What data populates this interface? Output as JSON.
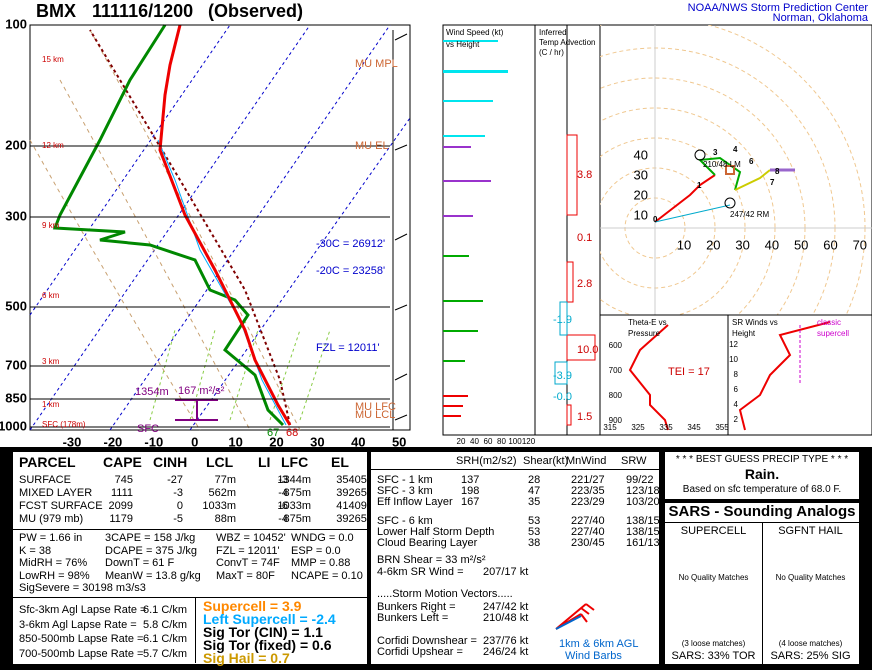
{
  "header": {
    "station": "BMX",
    "time": "111116/1200",
    "status": "(Observed)",
    "org": "NOAA/NWS Storm Prediction Center",
    "location": "Norman, Oklahoma"
  },
  "skewt": {
    "pressures": [
      100,
      200,
      300,
      500,
      700,
      850,
      1000
    ],
    "temps": [
      -30,
      -20,
      -10,
      0,
      10,
      20,
      30,
      40,
      50
    ],
    "heights": [
      "15 km",
      "12 km",
      "9 km",
      "6 km",
      "3 km",
      "1 km",
      "SFC (178m)"
    ],
    "annotations": {
      "mu_mpl": "MU MPL",
      "mu_el": "MU EL",
      "m30c": "-30C = 26912'",
      "m20c": "-20C = 23258'",
      "fzl": "FZL = 12011'",
      "eff_depth": "1354m",
      "eff_srh": "167 m²/s²",
      "sfc": "SFC",
      "dewpoint": "67",
      "temp": "68",
      "mu_lfc": "MU LFC",
      "mu_lcl": "MU LCL"
    }
  },
  "wind_panel": {
    "title": "Wind Speed (kt)",
    "subtitle": "vs Height",
    "ticks": [
      20,
      40,
      60,
      80,
      100,
      120
    ]
  },
  "advection": {
    "title": [
      "Inferred",
      "Temp Advection",
      "(C / hr)"
    ],
    "values": [
      3.8,
      0.1,
      2.8,
      -1.9,
      "10.0",
      -3.9,
      "-0.0",
      1.5
    ]
  },
  "hodograph": {
    "ticks": [
      10,
      20,
      30,
      40,
      50,
      60,
      70,
      80
    ],
    "rm": "247/42 RM",
    "lm": "210/48 LM",
    "hour_labels": [
      0,
      1,
      3,
      4,
      6,
      7,
      8
    ]
  },
  "theta_e": {
    "title": "Theta-E vs",
    "subtitle": "Pressure",
    "tei": "TEI = 17",
    "pticks": [
      600,
      700,
      800,
      900
    ],
    "tticks": [
      315,
      325,
      335,
      345,
      355
    ]
  },
  "sr_winds": {
    "title": "SR Winds vs",
    "subtitle": "Height",
    "legend": [
      "classic",
      "supercell"
    ],
    "ticks": [
      2,
      4,
      6,
      8,
      10,
      12
    ]
  },
  "parcel": {
    "headers": [
      "PARCEL",
      "CAPE",
      "CINH",
      "LCL",
      "LI",
      "LFC",
      "EL"
    ],
    "rows": [
      [
        "SURFACE",
        745,
        -27,
        "77m",
        -3,
        "1344m",
        "35405'"
      ],
      [
        "MIXED LAYER",
        1111,
        -3,
        "562m",
        -4,
        "875m",
        "39265'"
      ],
      [
        "FCST SURFACE",
        2099,
        0,
        "1033m",
        -6,
        "1033m",
        "41409'"
      ],
      [
        "MU   (979 mb)",
        1179,
        -5,
        "88m",
        -4,
        "875m",
        "39265'"
      ]
    ]
  },
  "thermo": [
    [
      "PW = 1.66 in",
      "3CAPE = 158 J/kg",
      "WBZ = 10452'",
      "WNDG = 0.0"
    ],
    [
      "K = 38",
      "DCAPE = 375 J/kg",
      "FZL = 12011'",
      "ESP = 0.0"
    ],
    [
      "MidRH = 76%",
      "DownT = 61 F",
      "ConvT = 74F",
      "MMP = 0.88"
    ],
    [
      "LowRH = 98%",
      "MeanW = 13.8 g/kg",
      "MaxT = 80F",
      "NCAPE = 0.10"
    ]
  ],
  "sigsevere": "SigSevere = 30198 m3/s3",
  "lapse": [
    [
      "Sfc-3km Agl Lapse Rate =",
      "6.1 C/km"
    ],
    [
      "3-6km Agl Lapse Rate =",
      "5.8 C/km"
    ],
    [
      "850-500mb Lapse Rate =",
      "6.1 C/km"
    ],
    [
      "700-500mb Lapse Rate =",
      "5.7 C/km"
    ]
  ],
  "indices": [
    "Supercell = 3.9",
    "Left Supercell = -2.4",
    "Sig Tor (CIN) = 1.1",
    "Sig Tor (fixed) = 0.6",
    "Sig Hail = 0.7"
  ],
  "kinematics": {
    "headers": [
      "SRH(m2/s2)",
      "Shear(kt)",
      "MnWind",
      "SRW"
    ],
    "rows": [
      [
        "SFC - 1 km",
        137,
        28,
        "221/27",
        "99/22"
      ],
      [
        "SFC - 3 km",
        198,
        47,
        "223/35",
        "123/18"
      ],
      [
        "Eff Inflow Layer",
        167,
        35,
        "223/29",
        "103/20"
      ],
      [
        "SFC - 6 km",
        null,
        53,
        "227/40",
        "138/15"
      ],
      [
        "Lower Half Storm Depth",
        null,
        53,
        "227/40",
        "138/15"
      ],
      [
        "Cloud Bearing Layer",
        null,
        38,
        "230/45",
        "161/13"
      ]
    ],
    "brn": "BRN Shear = 33 m²/s²",
    "sr46": [
      "4-6km SR Wind =",
      "207/17 kt"
    ],
    "motion_title": ".....Storm Motion Vectors.....",
    "motions": [
      [
        "Bunkers Right =",
        "247/42 kt"
      ],
      [
        "Bunkers Left =",
        "210/48 kt"
      ],
      [
        "Corfidi Downshear =",
        "237/76 kt"
      ],
      [
        "Corfidi Upshear =",
        "246/24 kt"
      ]
    ],
    "barbs": [
      "1km & 6km AGL",
      "Wind Barbs"
    ]
  },
  "precip": {
    "title": "* * * BEST GUESS PRECIP TYPE * * *",
    "type": "Rain.",
    "note": "Based on sfc temperature of 68.0 F."
  },
  "sars": {
    "title": "SARS - Sounding Analogs",
    "cols": [
      "SUPERCELL",
      "SGFNT HAIL"
    ],
    "matches": [
      "No Quality Matches",
      "No Quality Matches"
    ],
    "loose": [
      "(3 loose matches)",
      "(4 loose matches)"
    ],
    "result": [
      "SARS:  33% TOR",
      "SARS:  25% SIG"
    ]
  }
}
